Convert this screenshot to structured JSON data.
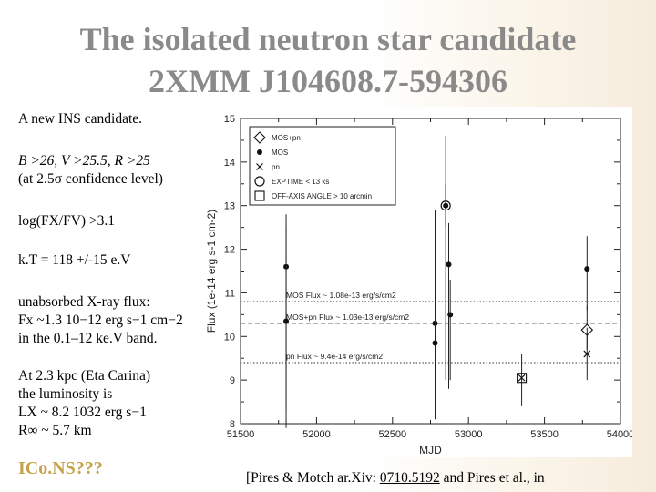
{
  "title": {
    "line1": "The isolated neutron star candidate",
    "line2": "2XMM J104608.7-594306"
  },
  "left": {
    "intro": "A new INS candidate.",
    "limits": "B >26, V >25.5, R >25",
    "limits_note": "(at 2.5σ confidence level)",
    "flux_ratio": "log(FX/FV) >3.1",
    "kt": "k.T = 118 +/-15 e.V",
    "flux_title": "unabsorbed X-ray flux:",
    "flux_value": "Fx ~1.3 10−12 erg s−1 cm−2",
    "flux_band": "in the 0.1–12 ke.V  band.",
    "lum_1": "At 2.3 kpc (Eta Carina)",
    "lum_2": "the luminosity is",
    "lum_3": "LX ~ 8.2 1032 erg s−1",
    "lum_4": "R∞ ~ 5.7 km"
  },
  "icons_label": "ICo.NS???",
  "citation": {
    "prefix": "[Pires & Motch ar.Xiv: ",
    "link": "0710.5192",
    "suffix": " and Pires et al., in"
  },
  "chart_data": {
    "type": "scatter",
    "xlabel": "MJD",
    "ylabel": "Flux (1e-14 erg s-1 cm-2)",
    "xlim": [
      51500,
      54000
    ],
    "ylim": [
      8,
      15
    ],
    "xticks": [
      51500,
      52000,
      52500,
      53000,
      53500,
      54000
    ],
    "yticks": [
      8,
      9,
      10,
      11,
      12,
      13,
      14,
      15
    ],
    "grid": false,
    "legend_position": "top-left",
    "legend": [
      {
        "label": "MOS+pn",
        "marker": "diamond"
      },
      {
        "label": "MOS",
        "marker": "dot"
      },
      {
        "label": "pn",
        "marker": "cross"
      },
      {
        "label": "EXPTIME < 13 ks",
        "marker": "ring"
      },
      {
        "label": "OFF-AXIS ANGLE > 10 arcmin",
        "marker": "square"
      }
    ],
    "reference_lines": [
      {
        "label": "MOS Flux ~ 1.08e-13 erg/s/cm2",
        "y": 10.8,
        "style": "dotted"
      },
      {
        "label": "MOS+pn Flux ~ 1.03e-13 erg/s/cm2",
        "y": 10.3,
        "style": "dashed"
      },
      {
        "label": "pn Flux ~ 9.4e-14 erg/s/cm2",
        "y": 9.4,
        "style": "dotted"
      }
    ],
    "points": [
      {
        "x": 51800,
        "y": 11.6,
        "err": [
          7.9,
          12.8
        ],
        "marker": "dot"
      },
      {
        "x": 51800,
        "y": 10.35,
        "err": [
          8.3,
          12.5
        ],
        "marker": "dot"
      },
      {
        "x": 52780,
        "y": 10.3,
        "err": [
          8.4,
          12.9
        ],
        "marker": "dot"
      },
      {
        "x": 52780,
        "y": 9.85,
        "err": [
          8.1,
          12.0
        ],
        "marker": "dot"
      },
      {
        "x": 52850,
        "y": 13.0,
        "err": [
          9.0,
          14.6
        ],
        "marker": "ring"
      },
      {
        "x": 52850,
        "y": 13.0,
        "err": [
          12.5,
          13.5
        ],
        "marker": "dot"
      },
      {
        "x": 52870,
        "y": 11.65,
        "err": [
          8.8,
          12.6
        ],
        "marker": "dot"
      },
      {
        "x": 52880,
        "y": 10.5,
        "err": [
          9.0,
          11.3
        ],
        "marker": "dot"
      },
      {
        "x": 53350,
        "y": 9.05,
        "err": [
          8.4,
          9.6
        ],
        "marker": "square"
      },
      {
        "x": 53350,
        "y": 9.05,
        "err": [
          9.05,
          9.05
        ],
        "marker": "cross"
      },
      {
        "x": 53780,
        "y": 11.55,
        "err": [
          10.6,
          12.3
        ],
        "marker": "dot"
      },
      {
        "x": 53780,
        "y": 10.15,
        "err": [
          9.7,
          10.7
        ],
        "marker": "diamond"
      },
      {
        "x": 53780,
        "y": 9.6,
        "err": [
          9.0,
          10.2
        ],
        "marker": "cross"
      }
    ]
  }
}
